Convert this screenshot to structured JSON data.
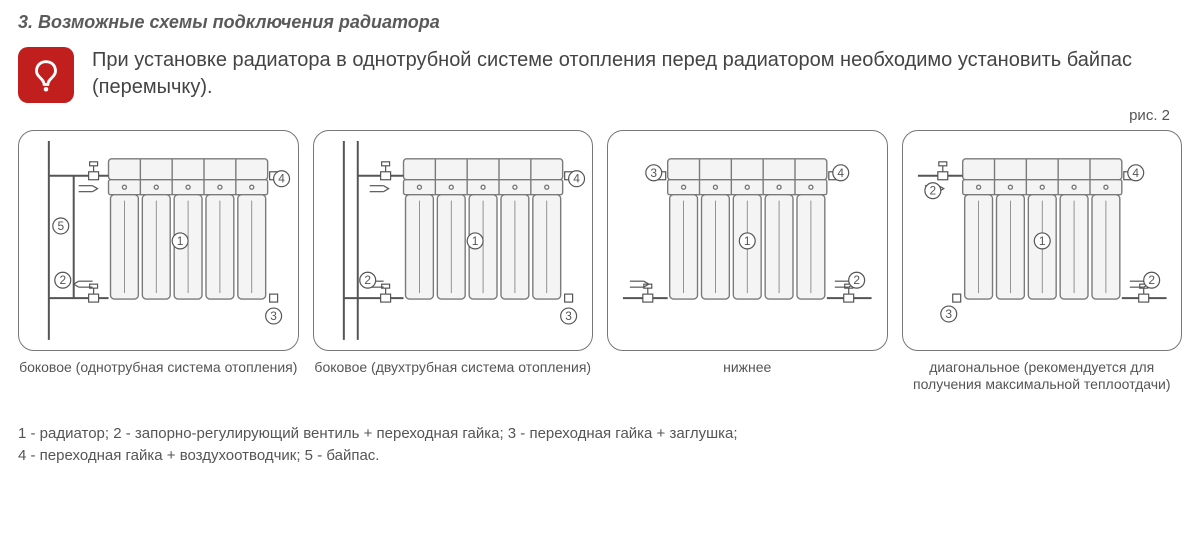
{
  "heading": "3. Возможные схемы подключения радиатора",
  "notice": "При установке радиатора в однотрубной системе отопления перед радиатором необходимо установить байпас (перемычку).",
  "figure_label": "рис. 2",
  "colors": {
    "warn_bg": "#c01f1d",
    "stroke": "#7a7a7a",
    "stroke_dark": "#555555",
    "text": "#444444",
    "radiator_fill": "#f4f4f4"
  },
  "panels": [
    {
      "id": "side-single",
      "caption": "боковое (однотрубная система отопления)",
      "callouts": [
        1,
        2,
        3,
        4,
        5
      ],
      "inlet": "top-left",
      "outlet": "bottom-left",
      "bypass": true,
      "two_pipe": false
    },
    {
      "id": "side-double",
      "caption": "боковое (двухтрубная система отопления)",
      "callouts": [
        1,
        2,
        3,
        4
      ],
      "inlet": "top-left",
      "outlet": "bottom-left",
      "bypass": false,
      "two_pipe": true
    },
    {
      "id": "bottom",
      "caption": "нижнее",
      "callouts": [
        1,
        2,
        3,
        4
      ],
      "inlet": "bottom-left",
      "outlet": "bottom-right",
      "bypass": false,
      "two_pipe": false
    },
    {
      "id": "diagonal",
      "caption": "диагональное (рекомендуется для получения максимальной теплоотдачи)",
      "callouts": [
        1,
        2,
        3,
        4
      ],
      "inlet": "top-left",
      "outlet": "bottom-right",
      "bypass": false,
      "two_pipe": false
    }
  ],
  "legend_items": [
    "1 - радиатор;",
    "2 - запорно-регулирующий вентиль + переходная гайка;",
    "3 - переходная гайка + заглушка;",
    "4 - переходная гайка + воздухоотводчик;",
    "5 - байпас."
  ],
  "diagram_style": {
    "radiator_sections": 5,
    "stroke_width": 1.4,
    "callout_radius": 8,
    "callout_fontsize": 12
  }
}
